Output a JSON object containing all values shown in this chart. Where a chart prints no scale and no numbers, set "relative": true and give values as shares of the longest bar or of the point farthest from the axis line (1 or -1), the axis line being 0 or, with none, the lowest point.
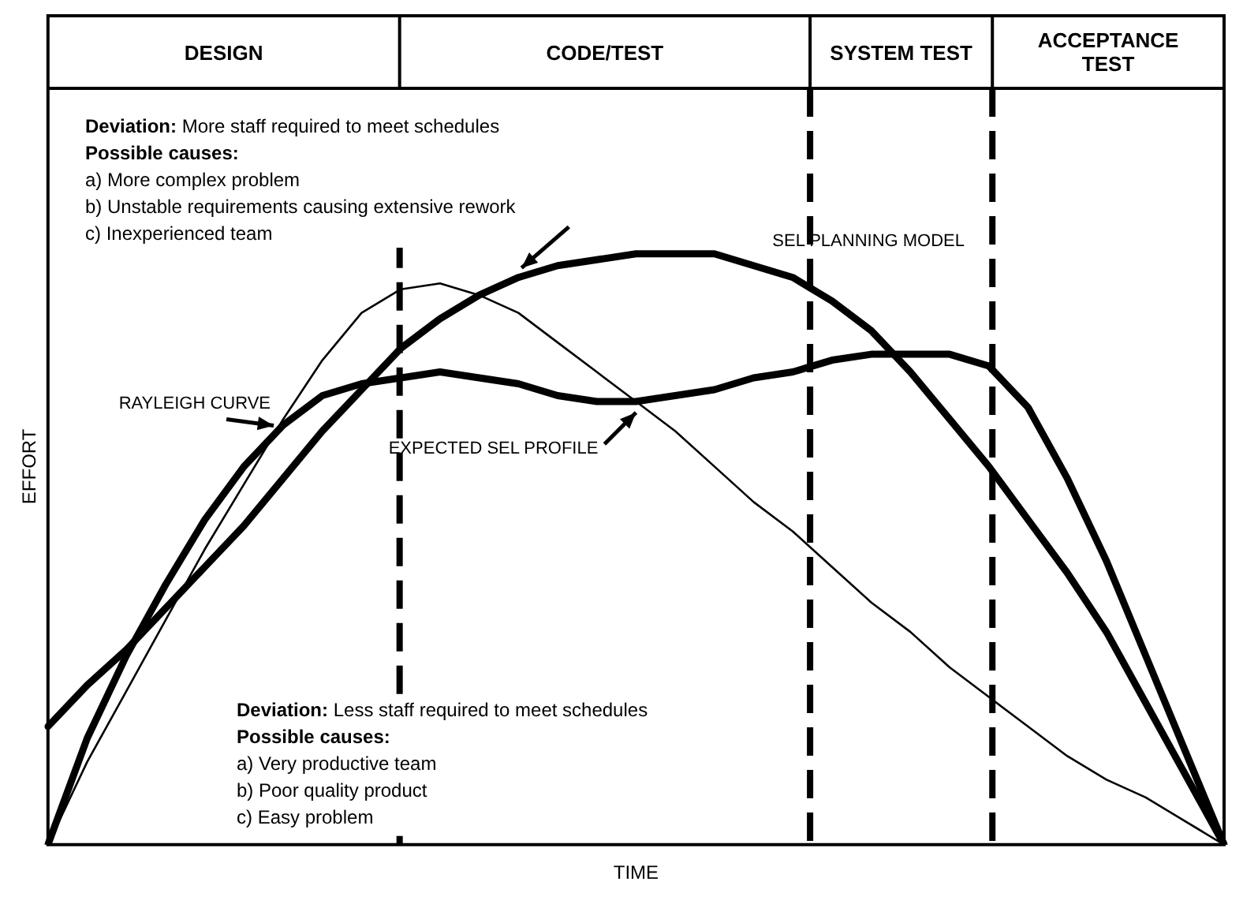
{
  "chart_data": {
    "type": "line",
    "relative": true,
    "xlabel": "TIME",
    "ylabel": "EFFORT",
    "legend": false,
    "categories": [
      null,
      null,
      null,
      null,
      null,
      null,
      null,
      null,
      null,
      null,
      null,
      null,
      null,
      null,
      null,
      null,
      null,
      null,
      null,
      null,
      null,
      null,
      null,
      null,
      null,
      null,
      null,
      null,
      null,
      null,
      null
    ],
    "series": [
      {
        "name": "RAYLEIGH CURVE",
        "color": "#000000",
        "values": [
          0,
          0.14,
          0.26,
          0.38,
          0.5,
          0.61,
          0.72,
          0.82,
          0.9,
          0.94,
          0.95,
          0.93,
          0.9,
          0.85,
          0.8,
          0.75,
          0.7,
          0.64,
          0.58,
          0.53,
          0.47,
          0.41,
          0.36,
          0.3,
          0.25,
          0.2,
          0.15,
          0.11,
          0.08,
          0.04,
          0
        ]
      },
      {
        "name": "SEL PLANNING MODEL",
        "color": "#000000",
        "values": [
          0.2,
          0.27,
          0.33,
          0.4,
          0.47,
          0.54,
          0.62,
          0.7,
          0.77,
          0.84,
          0.89,
          0.93,
          0.96,
          0.98,
          0.99,
          1,
          1,
          1,
          0.98,
          0.96,
          0.92,
          0.87,
          0.8,
          0.72,
          0.64,
          0.55,
          0.46,
          0.36,
          0.24,
          0.12,
          0
        ]
      },
      {
        "name": "EXPECTED SEL PROFILE",
        "color": "#000000",
        "values": [
          0,
          0.18,
          0.32,
          0.44,
          0.55,
          0.64,
          0.71,
          0.76,
          0.78,
          0.79,
          0.8,
          0.79,
          0.78,
          0.76,
          0.75,
          0.75,
          0.76,
          0.77,
          0.79,
          0.8,
          0.82,
          0.83,
          0.83,
          0.83,
          0.81,
          0.74,
          0.62,
          0.48,
          0.32,
          0.16,
          0
        ]
      }
    ],
    "annotations": [
      "DESIGN",
      "CODE/TEST",
      "SYSTEM TEST",
      "ACCEPTANCE TEST",
      "Deviation: More staff required to meet schedules",
      "Possible causes:",
      "a) More complex problem",
      "b) Unstable requirements causing extensive rework",
      "c) Inexperienced team",
      "Deviation: Less staff required to meet schedules",
      "Possible causes:",
      "a) Very productive team",
      "b) Poor quality product",
      "c) Easy problem"
    ]
  }
}
